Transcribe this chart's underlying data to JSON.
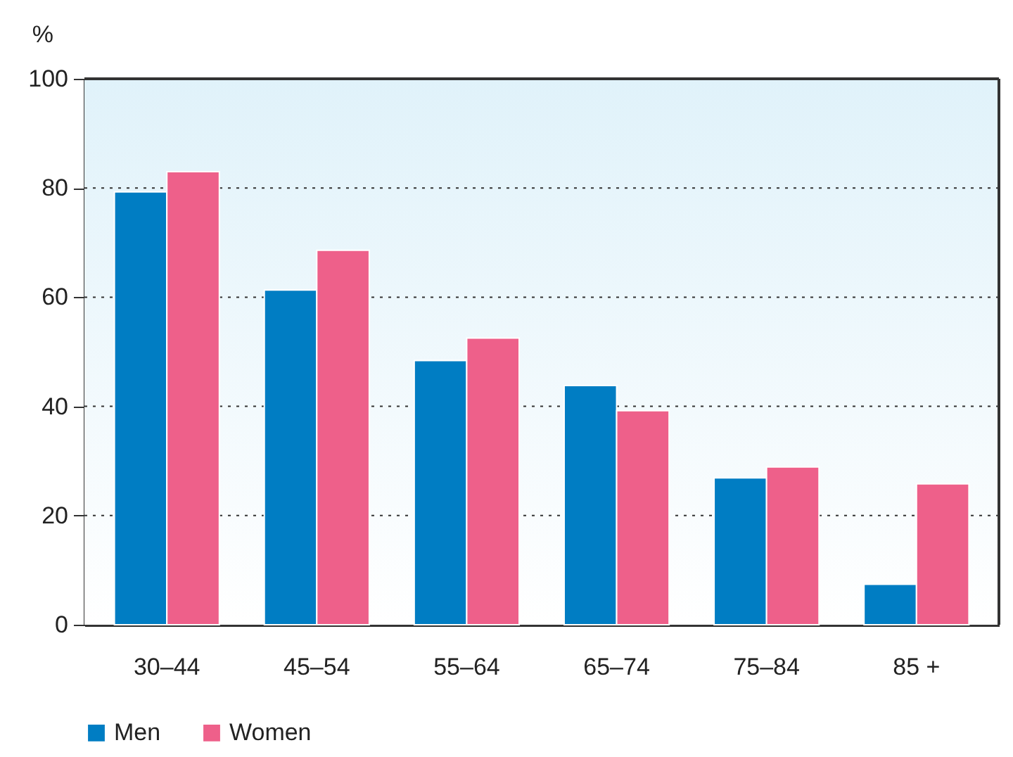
{
  "chart_data": {
    "type": "bar",
    "ylabel": "%",
    "categories": [
      "30–44",
      "45–54",
      "55–64",
      "65–74",
      "75–84",
      "85 +"
    ],
    "series": [
      {
        "name": "Men",
        "color": "#007dc3",
        "values": [
          79.3,
          61.3,
          48.4,
          43.8,
          26.9,
          7.4
        ]
      },
      {
        "name": "Women",
        "color": "#ee608a",
        "values": [
          83.0,
          68.6,
          52.5,
          39.2,
          28.9,
          25.8
        ]
      }
    ],
    "ylim": [
      0,
      100
    ],
    "yticks": [
      0,
      20,
      40,
      60,
      80,
      100
    ],
    "grid": "y",
    "legend": "bottom"
  }
}
